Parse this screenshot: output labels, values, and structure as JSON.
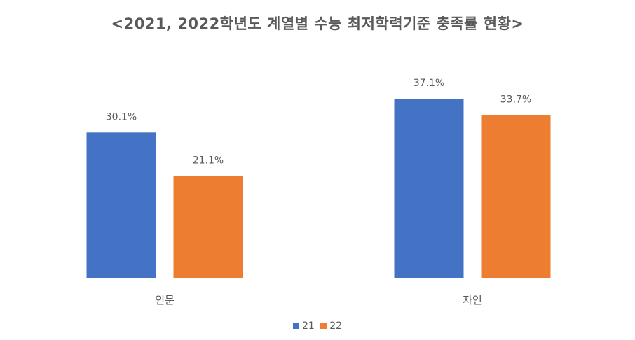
{
  "chart_data": {
    "type": "bar",
    "title": "<2021, 2022학년도 계열별 수능 최저학력기준 충족률 현황>",
    "xlabel": "",
    "ylabel": "",
    "categories": [
      "인문",
      "자연"
    ],
    "series": [
      {
        "name": "21",
        "values": [
          30.1,
          37.1
        ],
        "color": "#4472C4"
      },
      {
        "name": "22",
        "values": [
          21.1,
          33.7
        ],
        "color": "#ED7D31"
      }
    ],
    "value_labels": [
      [
        "30.1%",
        "37.1%"
      ],
      [
        "21.1%",
        "33.7%"
      ]
    ],
    "ylim": [
      0,
      40
    ],
    "grid": false,
    "legend_position": "bottom",
    "axis_color": "#D9D9D9"
  }
}
